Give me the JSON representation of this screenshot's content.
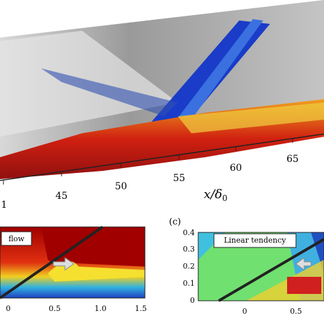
{
  "top_panel": {
    "x_ticks": [
      "1",
      "45",
      "50",
      "55",
      "60",
      "65"
    ],
    "x_label_var": "x",
    "x_label_den": "δ",
    "x_label_sub": "0"
  },
  "left_panel": {
    "box_label": "flow",
    "x_ticks": [
      "0",
      "0.5",
      "1.0",
      "1.5"
    ]
  },
  "right_panel": {
    "panel_label": "(c)",
    "box_label": "Linear tendency",
    "y_ticks": [
      "0",
      "0.1",
      "0.2",
      "0.3",
      "0.4"
    ],
    "x_ticks": [
      "0",
      "0.5"
    ]
  }
}
